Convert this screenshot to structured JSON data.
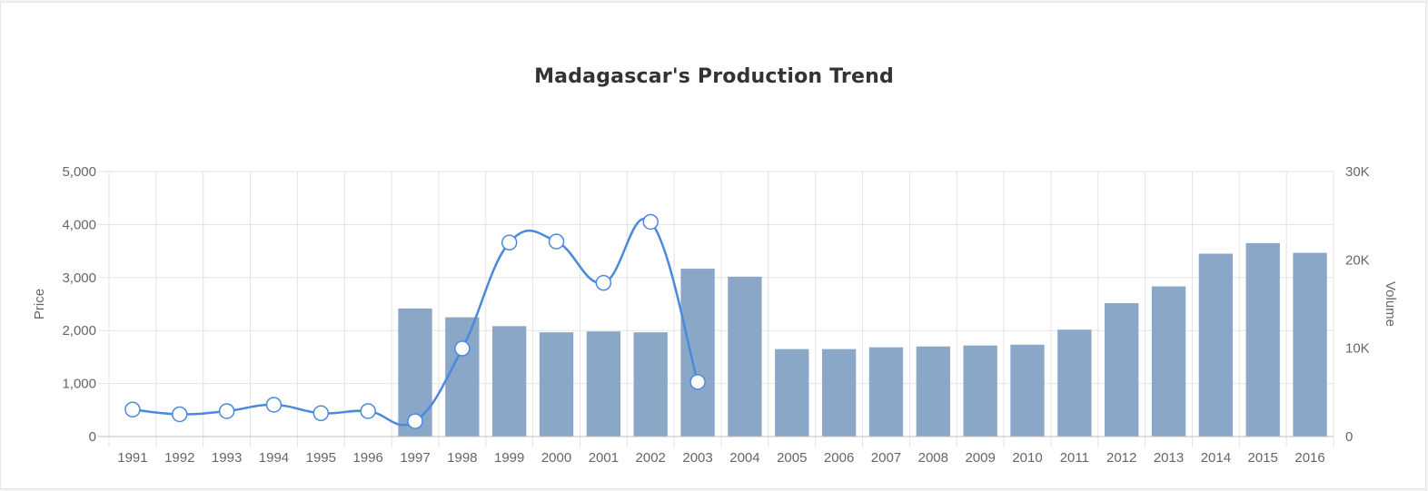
{
  "chart_data": {
    "type": "bar",
    "title": "Madagascar's Production Trend",
    "categories": [
      "1991",
      "1992",
      "1993",
      "1994",
      "1995",
      "1996",
      "1997",
      "1998",
      "1999",
      "2000",
      "2001",
      "2002",
      "2003",
      "2004",
      "2005",
      "2006",
      "2007",
      "2008",
      "2009",
      "2010",
      "2011",
      "2012",
      "2013",
      "2014",
      "2015",
      "2016"
    ],
    "y_left": {
      "label": "Price",
      "ylim": [
        0,
        5000
      ],
      "ticks": [
        "0",
        "1,000",
        "2,000",
        "3,000",
        "4,000",
        "5,000"
      ],
      "tick_values": [
        0,
        1000,
        2000,
        3000,
        4000,
        5000
      ]
    },
    "y_right": {
      "label": "Volume",
      "ylim": [
        0,
        30000
      ],
      "ticks": [
        "0",
        "10K",
        "20K",
        "30K"
      ],
      "tick_values": [
        0,
        10000,
        20000,
        30000
      ]
    },
    "grid": true,
    "series": [
      {
        "type": "bar",
        "axis": "right",
        "color": "#8aa7c8",
        "values": [
          null,
          null,
          null,
          null,
          null,
          null,
          14500,
          13500,
          12500,
          11800,
          11900,
          11800,
          19000,
          18100,
          9900,
          9900,
          10100,
          10200,
          10300,
          10400,
          12100,
          15100,
          17000,
          20700,
          21900,
          20800
        ]
      },
      {
        "type": "line",
        "axis": "left",
        "color": "#4a89dc",
        "smooth": true,
        "values": [
          510,
          420,
          480,
          600,
          440,
          480,
          290,
          1660,
          3660,
          3680,
          2900,
          4050,
          1030,
          null,
          null,
          null,
          null,
          null,
          null,
          null,
          null,
          null,
          null,
          null,
          null,
          null
        ]
      }
    ]
  }
}
